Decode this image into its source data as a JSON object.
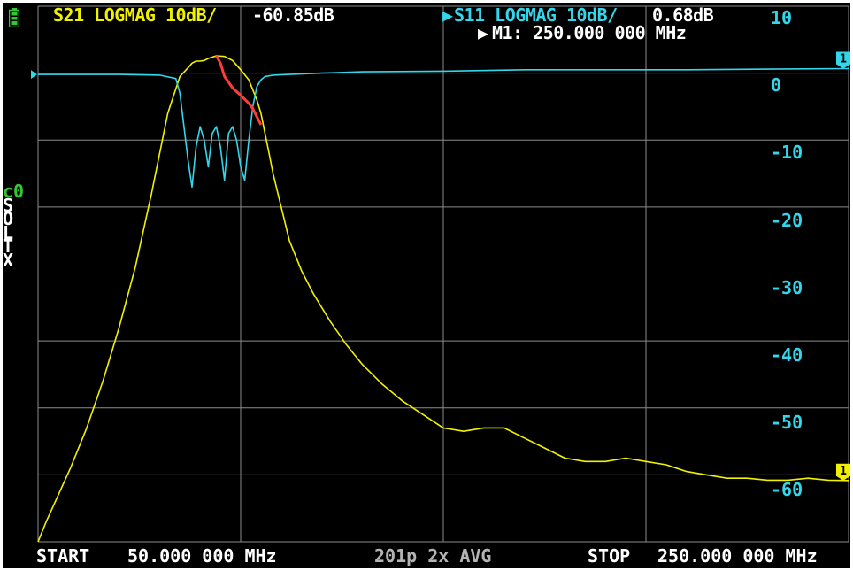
{
  "header": {
    "s21_label": "S21 LOGMAG 10dB/",
    "s21_value": "-60.85dB",
    "s11_label": "S11 LOGMAG 10dB/",
    "s11_value": "0.68dB",
    "marker_readout": "M1: 250.000 000 MHz",
    "s11_active_indicator": "▶",
    "marker_indicator": "▶"
  },
  "y_scale": [
    "10",
    "0",
    "-10",
    "-20",
    "-30",
    "-40",
    "-50",
    "-60"
  ],
  "calibration": {
    "channel": "c0",
    "flags": [
      "S",
      "O",
      "L",
      "T",
      "X"
    ]
  },
  "footer": {
    "start_label": "START",
    "start_value": "50.000 000 MHz",
    "points_avg": "201p 2x AVG",
    "stop_label": "STOP",
    "stop_value": "250.000 000 MHz"
  },
  "markers": {
    "m1_s11": "1",
    "m1_s21": "1"
  },
  "colors": {
    "s21_trace": "#f2f200",
    "s11_trace": "#33d6ea",
    "stored_trace": "#ff3b3b",
    "grid": "#8c8c8c",
    "background": "#000000",
    "calibration": "#32c832"
  },
  "icons": {
    "battery": "battery-icon"
  },
  "chart_data": {
    "type": "line",
    "x_unit": "MHz",
    "xlim": [
      50,
      250
    ],
    "ylim": [
      -70,
      10
    ],
    "series": [
      {
        "name": "S21 LOGMAG",
        "values_x": [
          50,
          52,
          55,
          58,
          62,
          66,
          70,
          74,
          78,
          82,
          85,
          87,
          88,
          89,
          90,
          91,
          92,
          94,
          96,
          98,
          100,
          102,
          104,
          105,
          106,
          107,
          108,
          110,
          112,
          115,
          118,
          122,
          126,
          130,
          135,
          140,
          145,
          150,
          155,
          160,
          165,
          170,
          175,
          180,
          185,
          190,
          195,
          200,
          205,
          210,
          215,
          220,
          225,
          230,
          235,
          240,
          245,
          250
        ],
        "values_y": [
          -70,
          -67,
          -63,
          -59,
          -53,
          -46,
          -38,
          -29,
          -18,
          -6,
          -0.5,
          0.8,
          1.5,
          1.8,
          1.8,
          1.9,
          2.2,
          2.6,
          2.5,
          1.9,
          0.5,
          -1,
          -4,
          -6,
          -9,
          -12,
          -15,
          -20,
          -25,
          -29.5,
          -33,
          -37,
          -40.5,
          -43.5,
          -46.5,
          -49,
          -51,
          -53,
          -53.5,
          -53,
          -53,
          -54.5,
          -56,
          -57.5,
          -58,
          -58,
          -57.5,
          -58,
          -58.5,
          -59.5,
          -60,
          -60.5,
          -60.5,
          -60.8,
          -60.8,
          -60.5,
          -60.8,
          -60.85
        ]
      },
      {
        "name": "S11 LOGMAG",
        "values_x": [
          50,
          60,
          70,
          80,
          84,
          85,
          86,
          87,
          88,
          89,
          90,
          91,
          92,
          93,
          94,
          95,
          96,
          97,
          98,
          99,
          100,
          101,
          102,
          103,
          104,
          105,
          106,
          108,
          112,
          120,
          130,
          150,
          170,
          190,
          210,
          230,
          250
        ],
        "values_y": [
          -0.2,
          -0.2,
          -0.2,
          -0.3,
          -0.8,
          -3,
          -8,
          -13,
          -17,
          -11,
          -8,
          -10,
          -14,
          -9,
          -8,
          -11,
          -16,
          -9,
          -8,
          -10,
          -14,
          -16,
          -10,
          -5,
          -2,
          -1,
          -0.5,
          -0.3,
          -0.2,
          0,
          0.2,
          0.3,
          0.5,
          0.5,
          0.5,
          0.6,
          0.68
        ]
      },
      {
        "name": "stored",
        "values_x": [
          94,
          95,
          96,
          98,
          100,
          102,
          103,
          104,
          105
        ],
        "values_y": [
          2.6,
          1.5,
          -0.5,
          -2.2,
          -3.3,
          -4.5,
          -5.3,
          -6.5,
          -7.7
        ]
      }
    ],
    "grid": true
  }
}
